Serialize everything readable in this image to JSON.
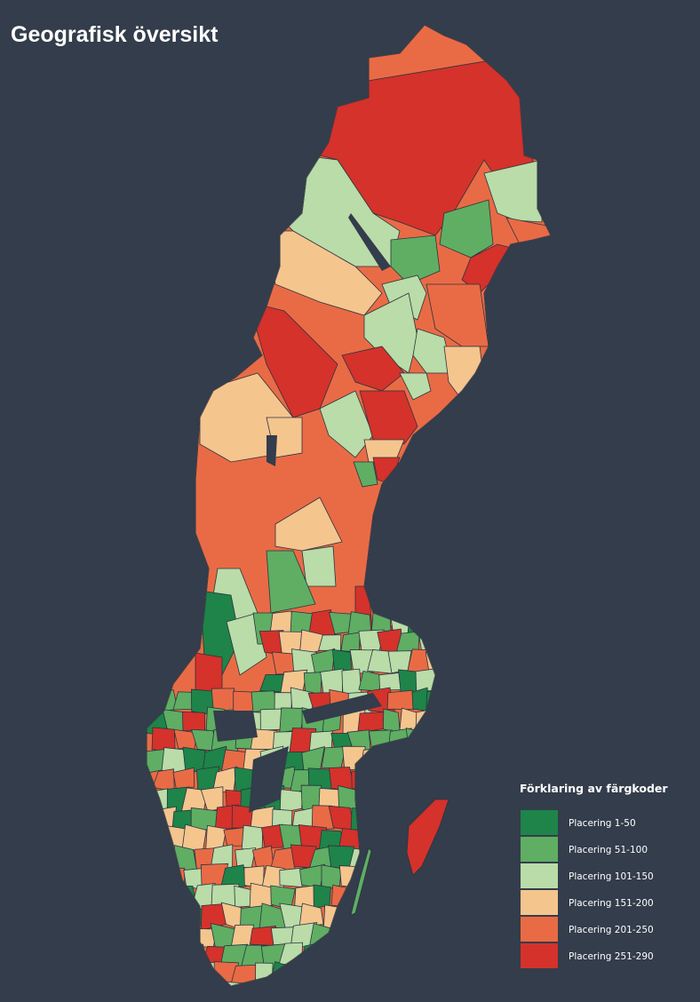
{
  "title": "Geografisk översikt",
  "legend": {
    "title": "Förklaring av färgkoder",
    "items": [
      {
        "label": "Placering 1-50",
        "color": "#1e8449"
      },
      {
        "label": "Placering 51-100",
        "color": "#5fae63"
      },
      {
        "label": "Placering 101-150",
        "color": "#b9dca8"
      },
      {
        "label": "Placering 151-200",
        "color": "#f5c58e"
      },
      {
        "label": "Placering 201-250",
        "color": "#e96b45"
      },
      {
        "label": "Placering 251-290",
        "color": "#d4322b"
      }
    ]
  }
}
